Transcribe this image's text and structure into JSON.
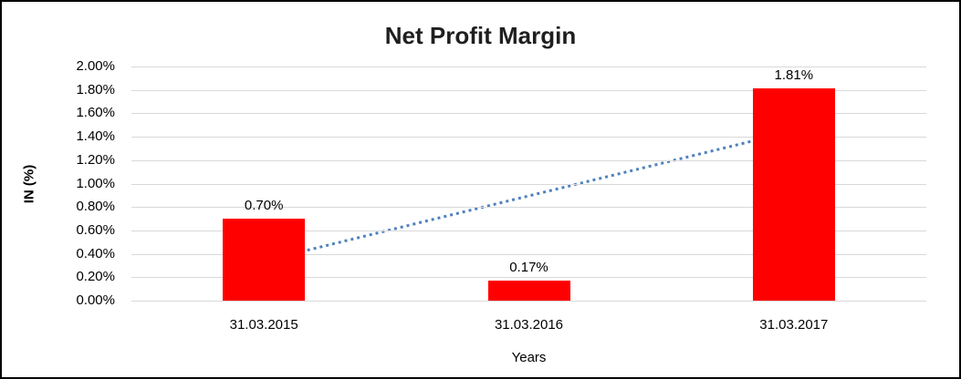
{
  "chart": {
    "title": "Net Profit Margin",
    "x_axis_title": "Years",
    "y_axis_title": "IN (%)"
  },
  "chart_data": {
    "type": "bar",
    "title": "Net Profit Margin",
    "xlabel": "Years",
    "ylabel": "IN (%)",
    "categories": [
      "31.03.2015",
      "31.03.2016",
      "31.03.2017"
    ],
    "values": [
      0.7,
      0.17,
      1.81
    ],
    "data_labels": [
      "0.70%",
      "0.17%",
      "1.81%"
    ],
    "y_ticks": [
      "2.00%",
      "1.80%",
      "1.60%",
      "1.40%",
      "1.20%",
      "1.00%",
      "0.80%",
      "0.60%",
      "0.40%",
      "0.20%",
      "0.00%"
    ],
    "ylim": [
      0,
      2.0
    ],
    "y_tick_step": 0.2,
    "grid": true,
    "legend": "none",
    "bar_color": "#ff0000",
    "gridline_color": "#d9d9d9",
    "text_color": "#000000",
    "trendline": {
      "type": "linear",
      "style": "dotted",
      "color": "#4f81bd",
      "start_value": 0.34,
      "end_value": 1.45
    }
  }
}
